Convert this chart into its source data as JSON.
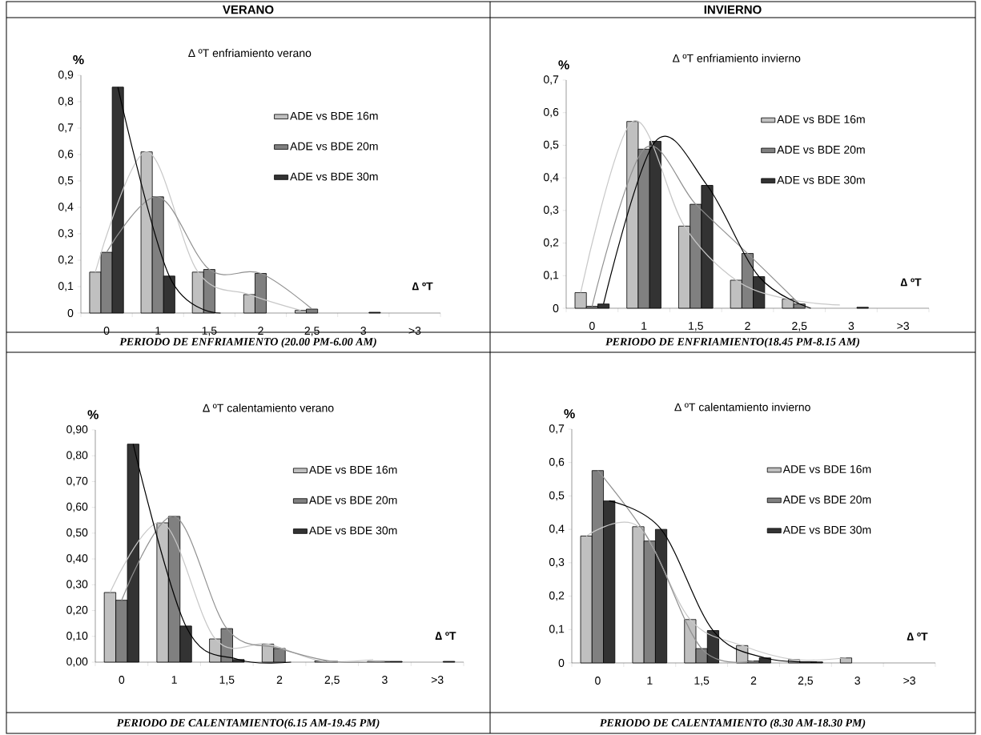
{
  "chart_data": [
    {
      "type": "bar",
      "title": "∆ ºT enfriamiento verano",
      "xlabel": "∆ ºT",
      "ylabel": "%",
      "categories": [
        "0",
        "1",
        "1,5",
        "2",
        "2,5",
        "3",
        ">3"
      ],
      "series": [
        {
          "name": "ADE vs BDE 16m",
          "color": "#c0c0c0",
          "values": [
            0.155,
            0.61,
            0.155,
            0.07,
            0.01,
            null,
            null
          ]
        },
        {
          "name": "ADE vs BDE 20m",
          "color": "#808080",
          "values": [
            0.23,
            0.44,
            0.165,
            0.15,
            0.015,
            null,
            null
          ]
        },
        {
          "name": "ADE vs BDE 30m",
          "color": "#333333",
          "values": [
            0.855,
            0.14,
            null,
            null,
            null,
            0.003,
            null
          ]
        },
        {
          "type": "line",
          "color": "#c8c8c8",
          "values": [
            0.155,
            0.61,
            0.155,
            0.07,
            0.01,
            null,
            null
          ]
        },
        {
          "type": "line",
          "color": "#909090",
          "values": [
            0.23,
            0.44,
            0.165,
            0.15,
            0.015,
            null,
            null
          ]
        },
        {
          "type": "line",
          "color": "#000000",
          "values": [
            0.855,
            0.14,
            0,
            null,
            null,
            null,
            null
          ]
        }
      ],
      "ylim": [
        0,
        0.9
      ],
      "yticks": [
        0,
        {
          "value": 0.1,
          "label": "0,1"
        },
        {
          "value": 0.2,
          "label": "0,2"
        },
        {
          "value": 0.3,
          "label": "0,3"
        },
        {
          "value": 0.4,
          "label": "0,4"
        },
        {
          "value": 0.5,
          "label": "0,5"
        },
        {
          "value": 0.6,
          "label": "0,6"
        },
        {
          "value": 0.7,
          "label": "0,7"
        },
        {
          "value": 0.8,
          "label": "0,8"
        },
        {
          "value": 0.9,
          "label": "0,9"
        }
      ],
      "legend": "right",
      "annotations": [
        "VERANO",
        "PERIODO DE ENFRIAMIENTO (20.00 PM-6.00 AM)"
      ]
    },
    {
      "type": "bar",
      "title": "∆ ºT enfriamiento invierno",
      "xlabel": "∆ ºT",
      "ylabel": "%",
      "categories": [
        "0",
        "1",
        "1,5",
        "2",
        "2,5",
        "3",
        ">3"
      ],
      "series": [
        {
          "name": "ADE vs BDE 16m",
          "color": "#c0c0c0",
          "values": [
            0.048,
            0.573,
            0.252,
            0.086,
            0.028,
            null,
            null
          ]
        },
        {
          "name": "ADE vs BDE 20m",
          "color": "#808080",
          "values": [
            0.006,
            0.488,
            0.319,
            0.168,
            0.013,
            null,
            null
          ]
        },
        {
          "name": "ADE vs BDE 30m",
          "color": "#333333",
          "values": [
            0.013,
            0.512,
            0.377,
            0.097,
            null,
            0.003,
            null
          ]
        },
        {
          "type": "line",
          "color": "#c8c8c8",
          "values": [
            0.048,
            0.573,
            0.252,
            0.086,
            0.028,
            0.01,
            null
          ]
        },
        {
          "type": "line",
          "color": "#909090",
          "values": [
            0.006,
            0.488,
            0.319,
            0.168,
            0.013,
            null,
            null
          ]
        },
        {
          "type": "line",
          "color": "#000000",
          "values": [
            0.013,
            0.512,
            0.377,
            0.097,
            0,
            null,
            null
          ]
        }
      ],
      "ylim": [
        0,
        0.7
      ],
      "yticks": [
        0,
        {
          "value": 0.1,
          "label": "0,1"
        },
        {
          "value": 0.2,
          "label": "0,2"
        },
        {
          "value": 0.3,
          "label": "0,3"
        },
        {
          "value": 0.4,
          "label": "0,4"
        },
        {
          "value": 0.5,
          "label": "0,5"
        },
        {
          "value": 0.6,
          "label": "0,6"
        },
        {
          "value": 0.7,
          "label": "0,7"
        }
      ],
      "legend": "right",
      "annotations": [
        "INVIERNO",
        "PERIODO DE ENFRIAMIENTO(18.45 PM-8.15 AM)"
      ]
    },
    {
      "type": "bar",
      "title": "∆ ºT calentamiento verano",
      "xlabel": "∆ ºT",
      "ylabel": "%",
      "categories": [
        "0",
        "1",
        "1,5",
        "2",
        "2,5",
        "3",
        ">3"
      ],
      "series": [
        {
          "name": "ADE vs BDE 16m",
          "color": "#c0c0c0",
          "values": [
            0.27,
            0.54,
            0.09,
            0.07,
            0.005,
            0.003,
            null
          ]
        },
        {
          "name": "ADE vs BDE 20m",
          "color": "#808080",
          "values": [
            0.24,
            0.565,
            0.13,
            0.053,
            0.003,
            0.003,
            null
          ]
        },
        {
          "name": "ADE vs BDE 30m",
          "color": "#333333",
          "values": [
            0.845,
            0.14,
            0.01,
            null,
            null,
            0.003,
            0.003
          ]
        },
        {
          "type": "line",
          "color": "#c8c8c8",
          "values": [
            0.27,
            0.54,
            0.09,
            0.07,
            0.005,
            0.01,
            null
          ]
        },
        {
          "type": "line",
          "color": "#909090",
          "values": [
            0.24,
            0.565,
            0.13,
            0.053,
            0.003,
            0.003,
            null
          ]
        },
        {
          "type": "line",
          "color": "#000000",
          "values": [
            0.845,
            0.14,
            0.01,
            0,
            null,
            null,
            null
          ]
        }
      ],
      "ylim": [
        0,
        0.9
      ],
      "yticks": [
        {
          "value": 0,
          "label": "0,00"
        },
        {
          "value": 0.1,
          "label": "0,10"
        },
        {
          "value": 0.2,
          "label": "0,20"
        },
        {
          "value": 0.3,
          "label": "0,30"
        },
        {
          "value": 0.4,
          "label": "0,40"
        },
        {
          "value": 0.5,
          "label": "0,50"
        },
        {
          "value": 0.6,
          "label": "0,60"
        },
        {
          "value": 0.7,
          "label": "0,70"
        },
        {
          "value": 0.8,
          "label": "0,80"
        },
        {
          "value": 0.9,
          "label": "0,90"
        }
      ],
      "legend": "right",
      "annotations": [
        "PERIODO DE CALENTAMIENTO(6.15 AM-19.45 PM)"
      ]
    },
    {
      "type": "bar",
      "title": "∆ ºT calentamiento invierno",
      "xlabel": "∆ ºT",
      "ylabel": "%",
      "categories": [
        "0",
        "1",
        "1,5",
        "2",
        "2,5",
        "3",
        ">3"
      ],
      "series": [
        {
          "name": "ADE vs BDE 16m",
          "color": "#c0c0c0",
          "values": [
            0.38,
            0.408,
            0.13,
            0.052,
            0.01,
            0.015,
            null
          ]
        },
        {
          "name": "ADE vs BDE 20m",
          "color": "#808080",
          "values": [
            0.576,
            0.365,
            0.043,
            0.006,
            0.003,
            null,
            null
          ]
        },
        {
          "name": "ADE vs BDE 30m",
          "color": "#333333",
          "values": [
            0.485,
            0.4,
            0.097,
            0.015,
            0.003,
            null,
            null
          ]
        },
        {
          "type": "line",
          "color": "#c8c8c8",
          "values": [
            0.38,
            0.408,
            0.13,
            0.052,
            0.01,
            0.015,
            null
          ]
        },
        {
          "type": "line",
          "color": "#909090",
          "values": [
            0.576,
            0.365,
            0.043,
            0.006,
            null,
            null,
            null
          ]
        },
        {
          "type": "line",
          "color": "#000000",
          "values": [
            0.485,
            0.4,
            0.097,
            0.015,
            0.003,
            null,
            null
          ]
        }
      ],
      "ylim": [
        0,
        0.7
      ],
      "yticks": [
        0,
        {
          "value": 0.1,
          "label": "0,1"
        },
        {
          "value": 0.2,
          "label": "0,2"
        },
        {
          "value": 0.3,
          "label": "0,3"
        },
        {
          "value": 0.4,
          "label": "0,4"
        },
        {
          "value": 0.5,
          "label": "0,5"
        },
        {
          "value": 0.6,
          "label": "0,6"
        },
        {
          "value": 0.7,
          "label": "0,7"
        }
      ],
      "legend": "right",
      "annotations": [
        "PERIODO DE CALENTAMIENTO (8.30 AM-18.30 PM)"
      ]
    }
  ]
}
